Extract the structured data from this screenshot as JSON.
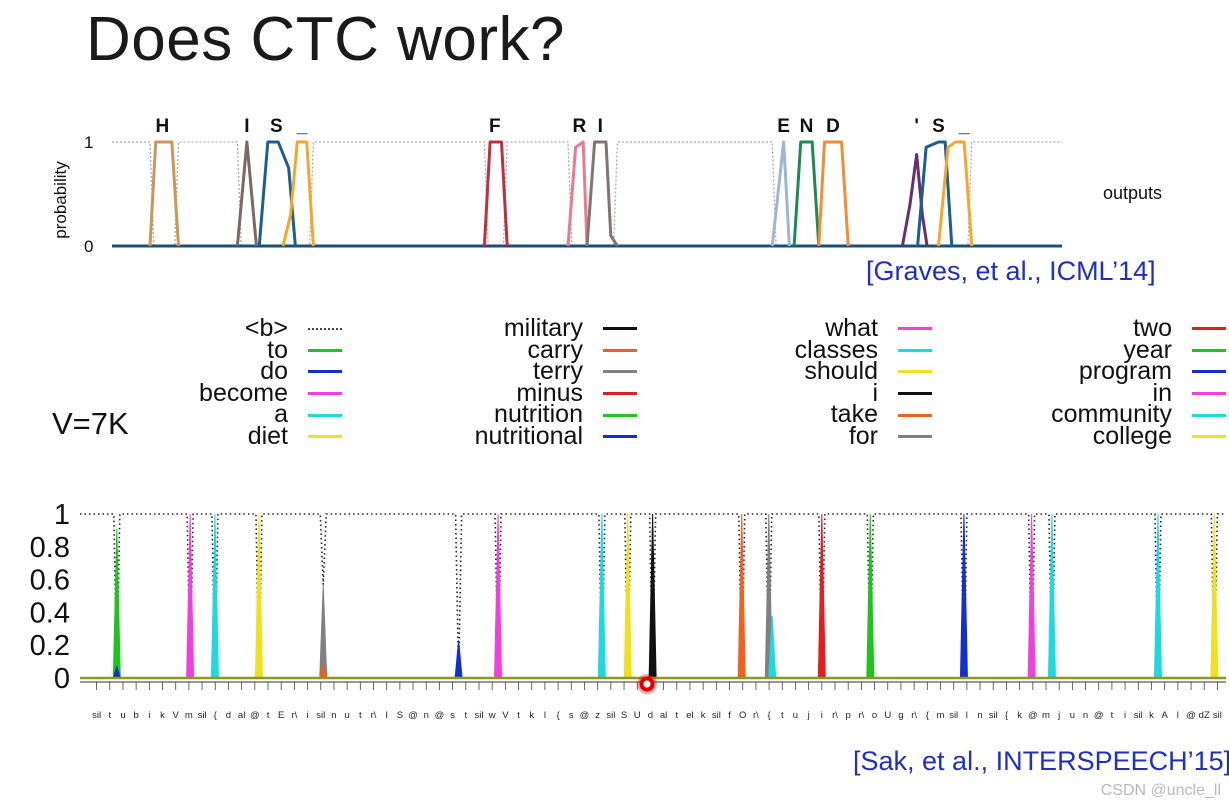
{
  "slide": {
    "title": "Does CTC work?",
    "vocab_size_label": "V=7K",
    "citation_top": "[Graves, et al., ICML’14]",
    "citation_bottom": "[Sak, et al., INTERSPEECH’15]",
    "watermark": "CSDN @uncle_ll"
  },
  "chart_data": [
    {
      "type": "line",
      "title": "",
      "ylabel": "probability",
      "right_label": "outputs",
      "ytick_labels": [
        "1",
        "0"
      ],
      "ylim": [
        0,
        1
      ],
      "char_labels": [
        {
          "text": "H",
          "t": 0.053
        },
        {
          "text": "I",
          "t": 0.142
        },
        {
          "text": "S",
          "t": 0.173
        },
        {
          "text": "_",
          "t": 0.2
        },
        {
          "text": "F",
          "t": 0.403
        },
        {
          "text": "R",
          "t": 0.492
        },
        {
          "text": "I",
          "t": 0.514
        },
        {
          "text": "E",
          "t": 0.707
        },
        {
          "text": "N",
          "t": 0.731
        },
        {
          "text": "D",
          "t": 0.759
        },
        {
          "text": "'",
          "t": 0.847
        },
        {
          "text": "S",
          "t": 0.87
        },
        {
          "text": "_",
          "t": 0.897
        }
      ],
      "series": [
        {
          "name": "H",
          "color": "#c9975a",
          "points": [
            [
              0.04,
              0
            ],
            [
              0.046,
              1
            ],
            [
              0.063,
              1
            ],
            [
              0.07,
              0
            ]
          ]
        },
        {
          "name": "I",
          "color": "#7a6a62",
          "points": [
            [
              0.132,
              0
            ],
            [
              0.142,
              1
            ],
            [
              0.152,
              0
            ]
          ]
        },
        {
          "name": "S",
          "color": "#1c5e8e",
          "points": [
            [
              0.155,
              0
            ],
            [
              0.164,
              1
            ],
            [
              0.175,
              1
            ],
            [
              0.186,
              0.75
            ],
            [
              0.193,
              0
            ]
          ]
        },
        {
          "name": "_",
          "color": "#f4a72e",
          "points": [
            [
              0.18,
              0
            ],
            [
              0.188,
              0.3
            ],
            [
              0.195,
              1
            ],
            [
              0.205,
              1
            ],
            [
              0.212,
              0
            ]
          ]
        },
        {
          "name": "F",
          "color": "#c0303a",
          "points": [
            [
              0.392,
              0
            ],
            [
              0.398,
              1
            ],
            [
              0.41,
              1
            ],
            [
              0.416,
              0
            ]
          ]
        },
        {
          "name": "R",
          "color": "#ea7a8e",
          "points": [
            [
              0.48,
              0
            ],
            [
              0.488,
              0.95
            ],
            [
              0.496,
              1
            ],
            [
              0.5,
              0
            ]
          ]
        },
        {
          "name": "I2",
          "color": "#7e7670",
          "points": [
            [
              0.5,
              0
            ],
            [
              0.508,
              1
            ],
            [
              0.52,
              1
            ],
            [
              0.525,
              0.1
            ],
            [
              0.532,
              0
            ]
          ]
        },
        {
          "name": "E",
          "color": "#9db6d4",
          "points": [
            [
              0.695,
              0
            ],
            [
              0.707,
              1
            ],
            [
              0.713,
              0
            ]
          ]
        },
        {
          "name": "N",
          "color": "#1f8a50",
          "points": [
            [
              0.718,
              0
            ],
            [
              0.725,
              1
            ],
            [
              0.737,
              1
            ],
            [
              0.744,
              0
            ]
          ]
        },
        {
          "name": "D",
          "color": "#f28c3a",
          "points": [
            [
              0.744,
              0
            ],
            [
              0.75,
              1
            ],
            [
              0.768,
              1
            ],
            [
              0.775,
              0
            ]
          ]
        },
        {
          "name": "'",
          "color": "#6a2d6e",
          "points": [
            [
              0.832,
              0
            ],
            [
              0.84,
              0.4
            ],
            [
              0.847,
              0.88
            ],
            [
              0.853,
              0.3
            ],
            [
              0.858,
              0
            ]
          ]
        },
        {
          "name": "S2",
          "color": "#1c5e8e",
          "points": [
            [
              0.848,
              0
            ],
            [
              0.857,
              0.95
            ],
            [
              0.87,
              1
            ],
            [
              0.877,
              1
            ],
            [
              0.884,
              0
            ]
          ]
        },
        {
          "name": "_2",
          "color": "#f4a72e",
          "points": [
            [
              0.87,
              0
            ],
            [
              0.88,
              0.95
            ],
            [
              0.888,
              1
            ],
            [
              0.897,
              1
            ],
            [
              0.905,
              0
            ]
          ]
        }
      ],
      "blank_segments": [
        [
          0.0,
          0.04
        ],
        [
          0.07,
          0.132
        ],
        [
          0.212,
          0.392
        ],
        [
          0.416,
          0.48
        ],
        [
          0.532,
          0.695
        ],
        [
          0.905,
          1.0
        ]
      ]
    },
    {
      "type": "line",
      "legend": [
        {
          "label": "<b>",
          "color": "#444444",
          "style": "dotted"
        },
        {
          "label": "to",
          "color": "#1fc41f"
        },
        {
          "label": "do",
          "color": "#1430cc"
        },
        {
          "label": "become",
          "color": "#f040e0"
        },
        {
          "label": "a",
          "color": "#20d8e0"
        },
        {
          "label": "diet",
          "color": "#f0e020"
        },
        {
          "label": "military",
          "color": "#111111"
        },
        {
          "label": "carry",
          "color": "#f06020"
        },
        {
          "label": "terry",
          "color": "#808080"
        },
        {
          "label": "minus",
          "color": "#e02020"
        },
        {
          "label": "nutrition",
          "color": "#1fc41f"
        },
        {
          "label": "nutritional",
          "color": "#1430cc"
        },
        {
          "label": "what",
          "color": "#f040e0"
        },
        {
          "label": "classes",
          "color": "#20d8e0"
        },
        {
          "label": "should",
          "color": "#f0e020"
        },
        {
          "label": "i",
          "color": "#111111"
        },
        {
          "label": "take",
          "color": "#f06020"
        },
        {
          "label": "for",
          "color": "#808080"
        },
        {
          "label": "two",
          "color": "#e02020"
        },
        {
          "label": "year",
          "color": "#1fc41f"
        },
        {
          "label": "program",
          "color": "#1430cc"
        },
        {
          "label": "in",
          "color": "#f040e0"
        },
        {
          "label": "community",
          "color": "#20d8e0"
        },
        {
          "label": "college",
          "color": "#f0e020"
        }
      ],
      "ytick_labels": [
        "1",
        "0.8",
        "0.6",
        "0.4",
        "0.2",
        "0"
      ],
      "ylim": [
        0,
        1
      ],
      "spikes": [
        {
          "word": "to",
          "t": 0.022,
          "peak": 0.91,
          "color": "#1fc41f"
        },
        {
          "word": "do",
          "t": 0.022,
          "peak": 0.07,
          "color": "#1430cc"
        },
        {
          "word": "become",
          "t": 0.087,
          "peak": 1.0,
          "color": "#f040e0"
        },
        {
          "word": "a",
          "t": 0.109,
          "peak": 1.0,
          "color": "#20d8e0"
        },
        {
          "word": "diet",
          "t": 0.148,
          "peak": 1.0,
          "color": "#f0e020"
        },
        {
          "word": "terry",
          "t": 0.205,
          "peak": 0.57,
          "color": "#808080"
        },
        {
          "word": "carry",
          "t": 0.205,
          "peak": 0.08,
          "color": "#f06020"
        },
        {
          "word": "nutritional",
          "t": 0.325,
          "peak": 0.23,
          "color": "#1430cc"
        },
        {
          "word": "what",
          "t": 0.36,
          "peak": 1.0,
          "color": "#f040e0"
        },
        {
          "word": "classes",
          "t": 0.452,
          "peak": 1.0,
          "color": "#20d8e0"
        },
        {
          "word": "should",
          "t": 0.475,
          "peak": 1.0,
          "color": "#f0e020"
        },
        {
          "word": "i",
          "t": 0.497,
          "peak": 1.0,
          "color": "#111111"
        },
        {
          "word": "take",
          "t": 0.576,
          "peak": 1.0,
          "color": "#f06020"
        },
        {
          "word": "for",
          "t": 0.6,
          "peak": 1.0,
          "color": "#808080"
        },
        {
          "word": "classes",
          "t": 0.603,
          "peak": 0.38,
          "color": "#20d8e0"
        },
        {
          "word": "two",
          "t": 0.647,
          "peak": 1.0,
          "color": "#e02020"
        },
        {
          "word": "year",
          "t": 0.69,
          "peak": 1.0,
          "color": "#1fc41f"
        },
        {
          "word": "program",
          "t": 0.773,
          "peak": 1.0,
          "color": "#1430cc"
        },
        {
          "word": "in",
          "t": 0.833,
          "peak": 1.0,
          "color": "#f040e0"
        },
        {
          "word": "community",
          "t": 0.851,
          "peak": 1.0,
          "color": "#20d8e0"
        },
        {
          "word": "community",
          "t": 0.945,
          "peak": 1.0,
          "color": "#20d8e0"
        },
        {
          "word": "college",
          "t": 0.995,
          "peak": 1.0,
          "color": "#f0e020"
        }
      ],
      "blank_dips": [
        {
          "t": 0.022,
          "depth": 1.0
        },
        {
          "t": 0.087,
          "depth": 1.0
        },
        {
          "t": 0.109,
          "depth": 1.0
        },
        {
          "t": 0.148,
          "depth": 1.0
        },
        {
          "t": 0.205,
          "depth": 0.43
        },
        {
          "t": 0.325,
          "depth": 1.0
        },
        {
          "t": 0.36,
          "depth": 1.0
        },
        {
          "t": 0.452,
          "depth": 1.0
        },
        {
          "t": 0.475,
          "depth": 1.0
        },
        {
          "t": 0.497,
          "depth": 1.0
        },
        {
          "t": 0.576,
          "depth": 1.0
        },
        {
          "t": 0.6,
          "depth": 1.0
        },
        {
          "t": 0.647,
          "depth": 1.0
        },
        {
          "t": 0.69,
          "depth": 1.0
        },
        {
          "t": 0.773,
          "depth": 1.0
        },
        {
          "t": 0.833,
          "depth": 1.0
        },
        {
          "t": 0.851,
          "depth": 1.0
        },
        {
          "t": 0.945,
          "depth": 1.0
        },
        {
          "t": 0.995,
          "depth": 1.0
        }
      ],
      "phone_labels": [
        "sil",
        "t",
        "u",
        "b",
        "i",
        "k",
        "V",
        "m",
        "sil",
        "{",
        "d",
        "al",
        "@",
        "t",
        "E",
        "r\\",
        "i",
        "sil",
        "n",
        "u",
        "t",
        "r\\",
        "I",
        "S",
        "@",
        "n",
        "@",
        "s",
        "t",
        "sil",
        "w",
        "V",
        "t",
        "k",
        "l",
        "{",
        "s",
        "@",
        "z",
        "sil",
        "S",
        "U",
        "d",
        "al",
        "t",
        "el",
        "k",
        "sil",
        "f",
        "O",
        "r\\",
        "{",
        "t",
        "u",
        "j",
        "i",
        "r\\",
        "p",
        "r\\",
        "o",
        "U",
        "g",
        "r\\",
        "{",
        "m",
        "sil",
        "l",
        "n",
        "sil",
        "{",
        "k",
        "@",
        "m",
        "j",
        "u",
        "n",
        "@",
        "t",
        "i",
        "sil",
        "k",
        "A",
        "l",
        "@",
        "dZ",
        "sil"
      ]
    }
  ]
}
